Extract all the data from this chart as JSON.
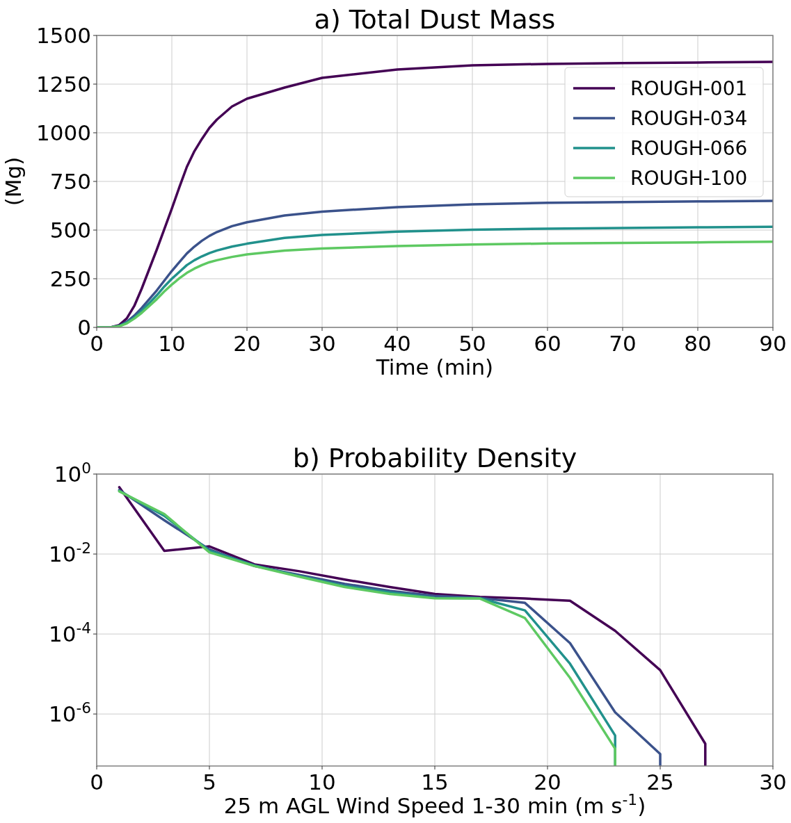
{
  "chart_data": [
    {
      "type": "line",
      "title": "a) Total Dust Mass",
      "xlabel": "Time (min)",
      "ylabel": "(Mg)",
      "x": [
        0,
        2,
        3,
        4,
        5,
        6,
        7,
        8,
        9,
        10,
        11,
        12,
        13,
        14,
        15,
        16,
        18,
        20,
        25,
        30,
        40,
        50,
        60,
        70,
        80,
        90
      ],
      "series": [
        {
          "name": "ROUGH-001",
          "color": "#440154",
          "values": [
            0,
            2,
            12,
            46,
            110,
            200,
            300,
            400,
            505,
            610,
            720,
            825,
            905,
            968,
            1025,
            1068,
            1135,
            1175,
            1232,
            1282,
            1325,
            1346,
            1354,
            1358,
            1361,
            1364
          ]
        },
        {
          "name": "ROUGH-034",
          "color": "#3b528b",
          "values": [
            0,
            1,
            8,
            28,
            60,
            100,
            145,
            190,
            240,
            290,
            335,
            380,
            415,
            445,
            470,
            490,
            520,
            540,
            575,
            595,
            618,
            632,
            640,
            644,
            647,
            650
          ]
        },
        {
          "name": "ROUGH-066",
          "color": "#21918c",
          "values": [
            0,
            1,
            7,
            24,
            50,
            85,
            125,
            165,
            210,
            250,
            285,
            320,
            345,
            365,
            382,
            395,
            415,
            430,
            460,
            475,
            492,
            502,
            507,
            511,
            514,
            517
          ]
        },
        {
          "name": "ROUGH-100",
          "color": "#5ec962",
          "values": [
            0,
            1,
            6,
            20,
            45,
            75,
            110,
            145,
            185,
            220,
            252,
            280,
            302,
            320,
            335,
            345,
            362,
            375,
            395,
            405,
            418,
            426,
            431,
            434,
            437,
            440
          ]
        }
      ],
      "xlim": [
        0,
        90
      ],
      "xticks": [
        0,
        10,
        20,
        30,
        40,
        50,
        60,
        70,
        80,
        90
      ],
      "ylim": [
        0,
        1500
      ],
      "yticks": [
        0,
        250,
        500,
        750,
        1000,
        1250,
        1500
      ],
      "grid": true,
      "legend": "top right",
      "line_style": "solid"
    },
    {
      "type": "line",
      "title": "b) Probability Density",
      "xlabel": "25 m AGL Wind Speed 1-30 min (m s$^{-1}$)",
      "log": "y",
      "series": [
        {
          "color": "#440154",
          "x": [
            1,
            3,
            5,
            7,
            9,
            11,
            13,
            15,
            17,
            19,
            21,
            23,
            25,
            27,
            27
          ],
          "values": [
            0.47,
            0.012,
            0.0155,
            0.0055,
            0.0037,
            0.0023,
            0.0015,
            0.001,
            0.00085,
            0.00077,
            0.00068,
            0.00012,
            1.25e-05,
            1.8e-07,
            5e-08
          ]
        },
        {
          "color": "#3b528b",
          "x": [
            1,
            3,
            5,
            7,
            9,
            11,
            13,
            15,
            17,
            19,
            21,
            23,
            25,
            25
          ],
          "values": [
            0.4,
            0.07,
            0.013,
            0.005,
            0.003,
            0.0018,
            0.0012,
            0.0009,
            0.0008,
            0.0006,
            5.9e-05,
            1.1e-06,
            1e-07,
            5e-08
          ]
        },
        {
          "color": "#21918c",
          "x": [
            1,
            3,
            5,
            7,
            9,
            11,
            13,
            15,
            17,
            19,
            21,
            23,
            23
          ],
          "values": [
            0.38,
            0.09,
            0.012,
            0.0052,
            0.0028,
            0.0016,
            0.0011,
            0.0008,
            0.00078,
            0.00039,
            1.8e-05,
            2.9e-07,
            5e-08
          ]
        },
        {
          "color": "#5ec962",
          "x": [
            1,
            3,
            5,
            7,
            9,
            11,
            13,
            15,
            17,
            19,
            21,
            23,
            23
          ],
          "values": [
            0.37,
            0.1,
            0.011,
            0.005,
            0.0027,
            0.0015,
            0.001,
            0.00078,
            0.00077,
            0.00025,
            8e-06,
            1.35e-07,
            5e-08
          ]
        }
      ],
      "xlim": [
        0,
        30
      ],
      "xticks": [
        0,
        5,
        10,
        15,
        20,
        25,
        30
      ],
      "ylim": [
        5e-08,
        1
      ],
      "yticks": [
        {
          "value": 1,
          "label": "10$^{0}$"
        },
        {
          "value": 0.01,
          "label": "10$^{-2}$"
        },
        {
          "value": 0.0001,
          "label": "10$^{-4}$"
        },
        {
          "value": 1e-06,
          "label": "10$^{-6}$"
        }
      ],
      "grid": true,
      "legend": false,
      "line_style": "solid"
    }
  ]
}
